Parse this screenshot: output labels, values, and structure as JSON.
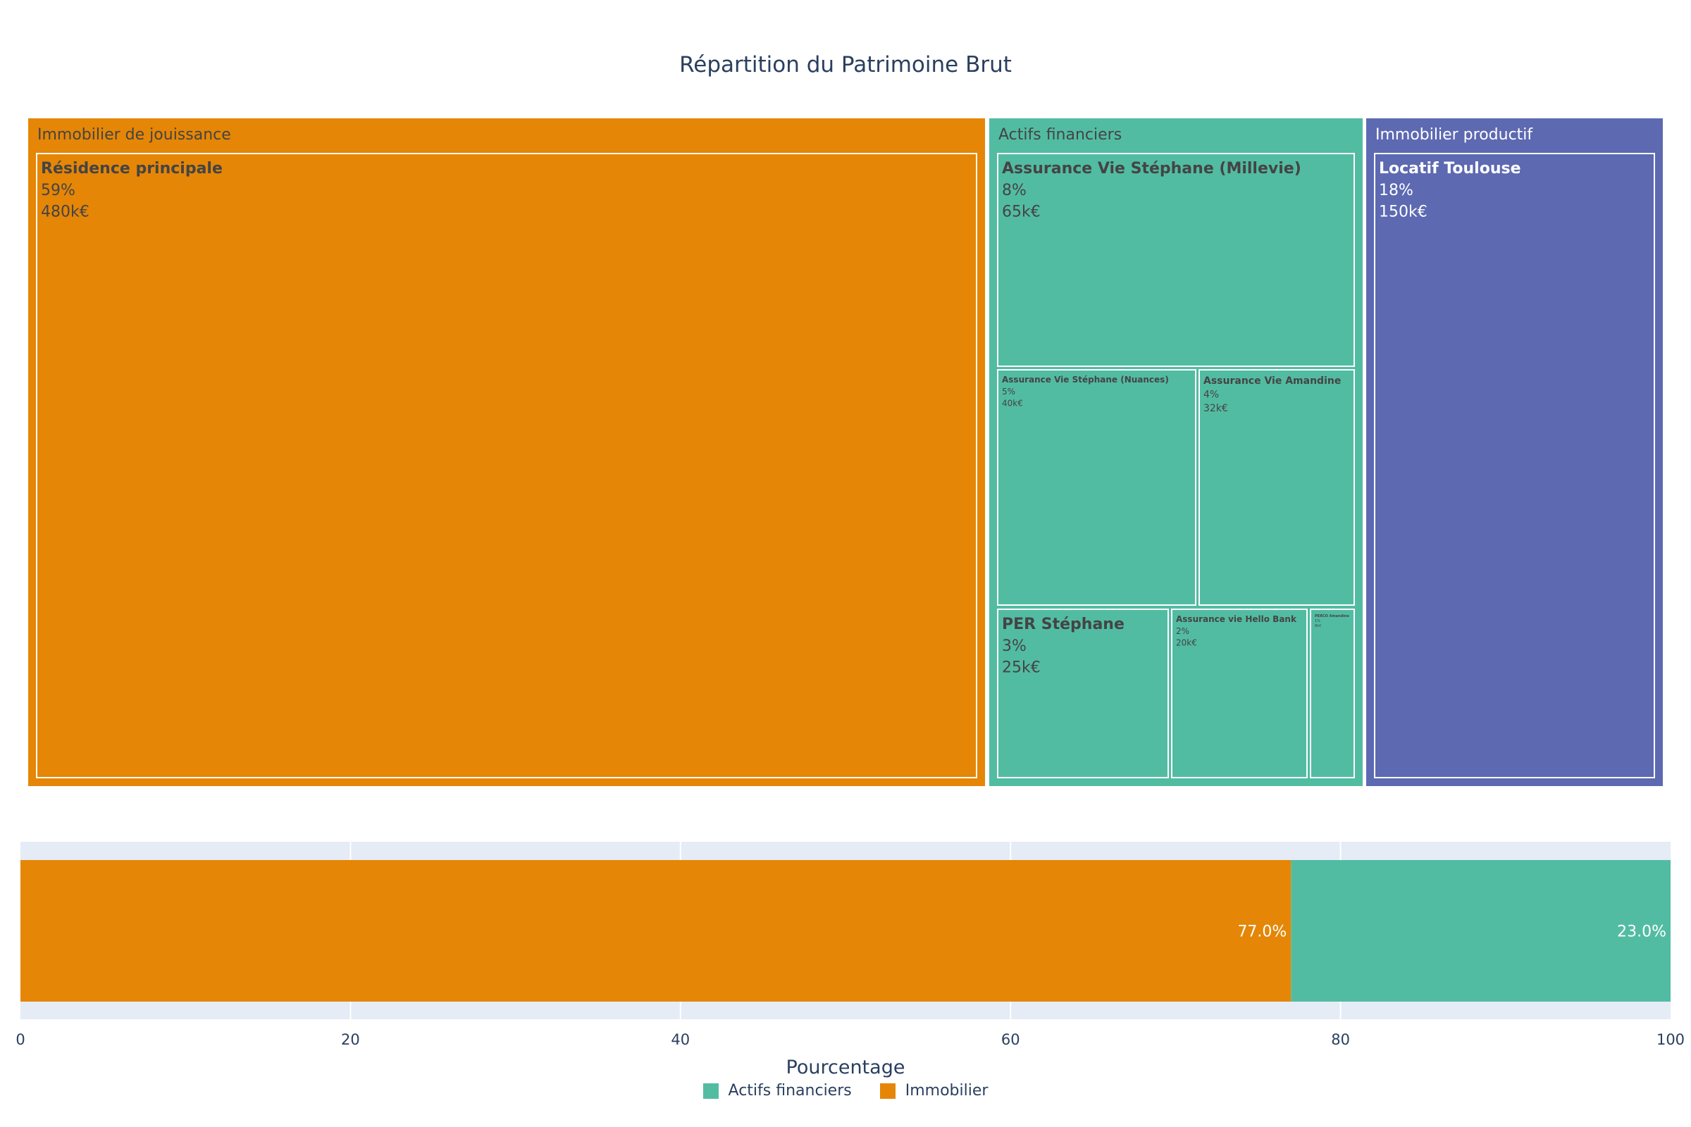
{
  "chart_data": [
    {
      "type": "treemap",
      "title": "Répartition du Patrimoine Brut",
      "colors": {
        "Immobilier de jouissance": "#e58606",
        "Actifs financiers": "#52bca3",
        "Immobilier productif": "#5d69b1"
      },
      "groups": [
        {
          "name": "Immobilier de jouissance",
          "items": [
            {
              "name": "Résidence principale",
              "pct": "59%",
              "value": "480k€"
            }
          ]
        },
        {
          "name": "Actifs financiers",
          "items": [
            {
              "name": "Assurance Vie Stéphane (Millevie)",
              "pct": "8%",
              "value": "65k€"
            },
            {
              "name": "Assurance Vie Stéphane (Nuances)",
              "pct": "5%",
              "value": "40k€"
            },
            {
              "name": "Assurance Vie Amandine",
              "pct": "4%",
              "value": "32k€"
            },
            {
              "name": "PER Stéphane",
              "pct": "3%",
              "value": "25k€"
            },
            {
              "name": "Assurance vie Hello Bank",
              "pct": "2%",
              "value": "20k€"
            },
            {
              "name": "PERCO Amandine",
              "pct": "1%",
              "value": "8k€"
            }
          ]
        },
        {
          "name": "Immobilier productif",
          "items": [
            {
              "name": "Locatif Toulouse",
              "pct": "18%",
              "value": "150k€"
            }
          ]
        }
      ]
    },
    {
      "type": "bar",
      "orientation": "horizontal",
      "stacked": true,
      "xlabel": "Pourcentage",
      "xlim": [
        0,
        100
      ],
      "xticks": [
        0,
        20,
        40,
        60,
        80,
        100
      ],
      "series": [
        {
          "name": "Immobilier",
          "value": 77.0,
          "label": "77.0%",
          "color": "#e58606"
        },
        {
          "name": "Actifs financiers",
          "value": 23.0,
          "label": "23.0%",
          "color": "#52bca3"
        }
      ],
      "legend": [
        {
          "name": "Actifs financiers",
          "color": "#52bca3"
        },
        {
          "name": "Immobilier",
          "color": "#e58606"
        }
      ],
      "legend_position": "bottom-center"
    }
  ]
}
